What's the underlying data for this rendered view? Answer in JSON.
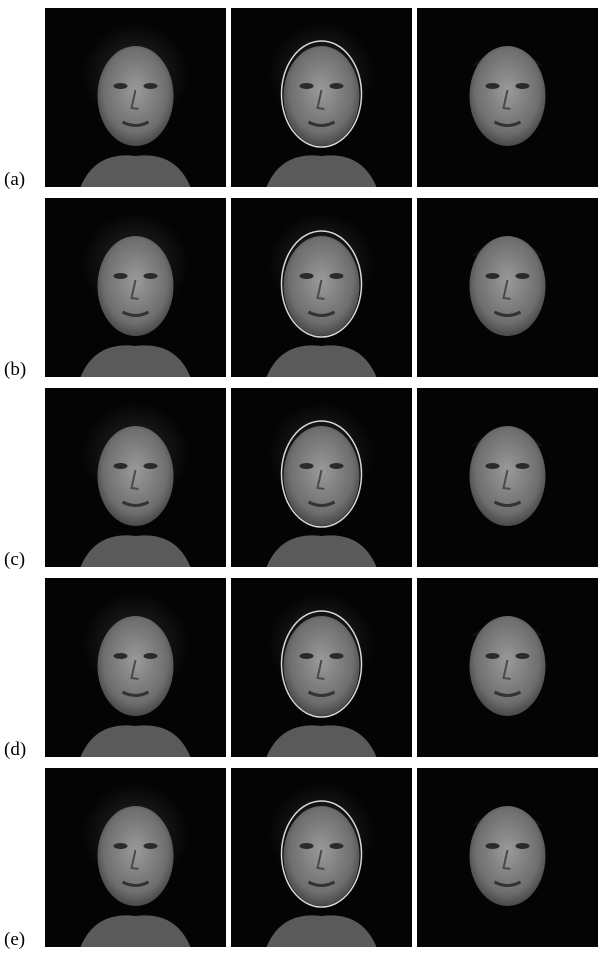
{
  "figure": {
    "rows": [
      {
        "label": "(a)"
      },
      {
        "label": "(b)"
      },
      {
        "label": "(c)"
      },
      {
        "label": "(d)"
      },
      {
        "label": "(e)"
      }
    ]
  }
}
